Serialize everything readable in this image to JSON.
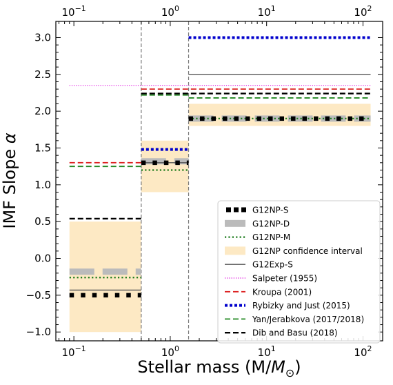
{
  "chart_data": {
    "type": "line",
    "title": "",
    "xlabel": "Stellar mass (M/",
    "xlabel_unit": "M",
    "xlabel_sub": "⊙",
    "xlabel_close": ")",
    "ylabel": "IMF Slope ",
    "ylabel_symbol": "α",
    "xscale": "log",
    "xlim": [
      0.065,
      160
    ],
    "ylim": [
      -1.12,
      3.22
    ],
    "grid": false,
    "legend_position": "lower right",
    "x_ticks_bottom": [
      {
        "value": 0.1,
        "base": "10",
        "exp": "−1"
      },
      {
        "value": 1,
        "base": "10",
        "exp": "0"
      },
      {
        "value": 10,
        "base": "10",
        "exp": "1"
      },
      {
        "value": 100,
        "base": "10",
        "exp": "2"
      }
    ],
    "x_ticks_top": [
      {
        "value": 0.1,
        "base": "10",
        "exp": "−1"
      },
      {
        "value": 1,
        "base": "10",
        "exp": "0"
      },
      {
        "value": 10,
        "base": "10",
        "exp": "1"
      },
      {
        "value": 100,
        "base": "10",
        "exp": "2"
      }
    ],
    "y_ticks": [
      {
        "value": -1.0,
        "label": "−1.0"
      },
      {
        "value": -0.5,
        "label": "−0.5"
      },
      {
        "value": 0.0,
        "label": "0.0"
      },
      {
        "value": 0.5,
        "label": "0.5"
      },
      {
        "value": 1.0,
        "label": "1.0"
      },
      {
        "value": 1.5,
        "label": "1.5"
      },
      {
        "value": 2.0,
        "label": "2.0"
      },
      {
        "value": 2.5,
        "label": "2.5"
      },
      {
        "value": 3.0,
        "label": "3.0"
      }
    ],
    "breakpoints": [
      0.5,
      1.55
    ],
    "series": [
      {
        "name": "G12NP-S",
        "style": "square-dots",
        "color": "#000000",
        "segments": [
          [
            0.09,
            0.5,
            -0.5
          ],
          [
            0.5,
            1.55,
            1.3
          ],
          [
            1.55,
            120,
            1.9
          ]
        ]
      },
      {
        "name": "G12NP-D",
        "style": "dashed-band",
        "color": "#bbbbbb",
        "segments": [
          [
            0.09,
            0.5,
            -0.18
          ],
          [
            0.5,
            1.55,
            1.32
          ],
          [
            1.55,
            120,
            1.9
          ]
        ]
      },
      {
        "name": "G12NP-M",
        "style": "dotted",
        "color": "#1a7a1a",
        "segments": [
          [
            0.09,
            0.5,
            -0.26
          ],
          [
            0.5,
            1.55,
            1.2
          ],
          [
            1.55,
            120,
            1.9
          ]
        ]
      },
      {
        "name": "G12NP confidence interval",
        "style": "fill",
        "color": "#fde9c4",
        "bands": [
          [
            0.09,
            0.5,
            -1.0,
            0.5
          ],
          [
            0.5,
            1.55,
            0.9,
            1.6
          ],
          [
            1.55,
            120,
            1.8,
            2.1
          ]
        ]
      },
      {
        "name": "G12Exp-S",
        "style": "solid",
        "color": "#555555",
        "segments": [
          [
            0.09,
            0.5,
            -0.43
          ],
          [
            0.5,
            1.55,
            1.3
          ],
          [
            1.55,
            120,
            2.5
          ]
        ]
      },
      {
        "name": "Salpeter (1955)",
        "style": "fine-dotted",
        "color": "#dd00dd",
        "segments": [
          [
            0.09,
            120,
            2.35
          ]
        ]
      },
      {
        "name": "Kroupa (2001)",
        "style": "dashed",
        "color": "#dd2222",
        "segments": [
          [
            0.09,
            0.5,
            1.3
          ],
          [
            0.5,
            120,
            2.3
          ]
        ]
      },
      {
        "name": "Rybizky and Just (2015)",
        "style": "thick-dotted",
        "color": "#0000cc",
        "segments": [
          [
            0.5,
            1.55,
            1.48
          ],
          [
            1.55,
            120,
            3.0
          ]
        ]
      },
      {
        "name": "Yan/Jerabkova  (2017/2018)",
        "style": "dashed",
        "color": "#228822",
        "segments": [
          [
            0.09,
            0.5,
            1.25
          ],
          [
            0.5,
            1.55,
            2.22
          ],
          [
            1.55,
            120,
            2.18
          ]
        ]
      },
      {
        "name": "Dib and Basu (2018)",
        "style": "thick-dashed",
        "color": "#000000",
        "segments": [
          [
            0.09,
            0.5,
            0.54
          ],
          [
            0.5,
            120,
            2.24
          ]
        ]
      }
    ]
  }
}
